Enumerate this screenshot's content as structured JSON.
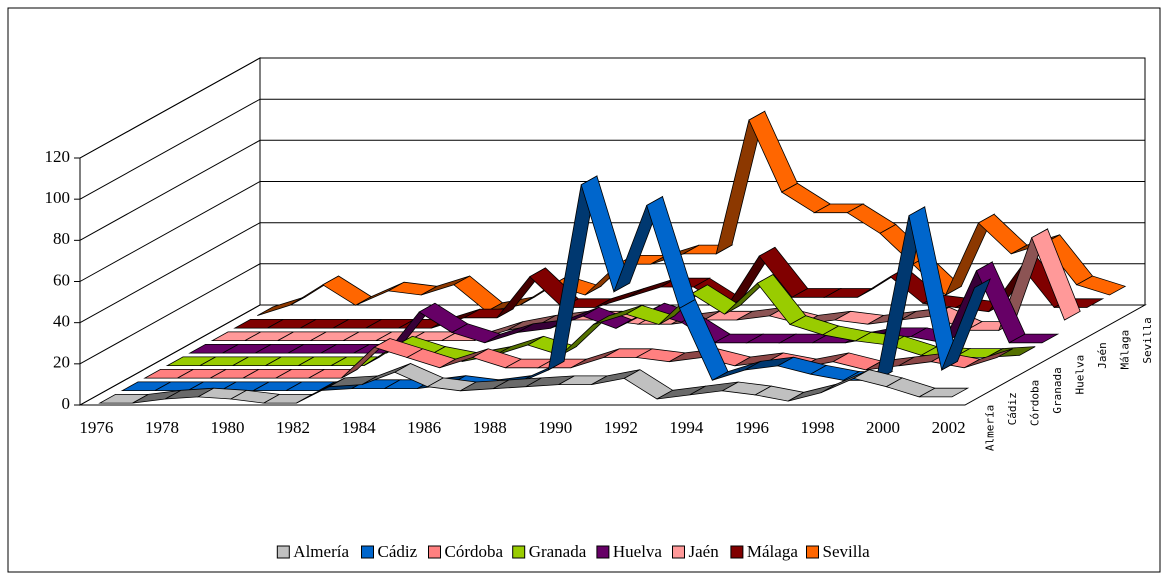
{
  "chart_data": {
    "type": "line3d",
    "categories": [
      "1976",
      null,
      "1978",
      null,
      "1980",
      null,
      "1982",
      null,
      "1984",
      null,
      "1986",
      null,
      "1988",
      null,
      "1990",
      null,
      "1992",
      null,
      "1994",
      null,
      "1996",
      null,
      "1998",
      null,
      "2000",
      null,
      "2002"
    ],
    "ylim": [
      0,
      120
    ],
    "yticks": [
      0,
      20,
      40,
      60,
      80,
      100,
      120
    ],
    "grid": true,
    "legend": "bottom",
    "series": [
      {
        "name": "Almería",
        "color": "#c0c0c0",
        "values": [
          0,
          0,
          2,
          3,
          2,
          0,
          0,
          8,
          9,
          15,
          8,
          6,
          7,
          8,
          9,
          9,
          12,
          2,
          4,
          6,
          4,
          1,
          5,
          12,
          8,
          3,
          3
        ]
      },
      {
        "name": "Cádiz",
        "color": "#0066cc",
        "values": [
          0,
          0,
          0,
          0,
          0,
          0,
          0,
          1,
          1,
          1,
          3,
          1,
          3,
          10,
          100,
          48,
          90,
          40,
          5,
          10,
          12,
          8,
          5,
          5,
          85,
          10,
          50
        ]
      },
      {
        "name": "Córdoba",
        "color": "#ff8080",
        "values": [
          0,
          0,
          0,
          0,
          0,
          0,
          0,
          15,
          10,
          5,
          10,
          5,
          5,
          5,
          10,
          10,
          8,
          10,
          6,
          8,
          5,
          8,
          4,
          6,
          8,
          5,
          10
        ]
      },
      {
        "name": "Granada",
        "color": "#99cc00",
        "values": [
          0,
          0,
          0,
          0,
          0,
          0,
          0,
          10,
          5,
          2,
          5,
          10,
          5,
          20,
          25,
          20,
          35,
          25,
          40,
          20,
          15,
          12,
          10,
          5,
          4,
          4,
          5
        ]
      },
      {
        "name": "Huelva",
        "color": "#660066",
        "values": [
          0,
          0,
          0,
          0,
          0,
          0,
          0,
          20,
          10,
          5,
          10,
          12,
          18,
          12,
          20,
          15,
          5,
          5,
          5,
          5,
          5,
          8,
          8,
          5,
          40,
          5,
          5
        ]
      },
      {
        "name": "Jaén",
        "color": "#ff9999",
        "values": [
          0,
          0,
          0,
          0,
          0,
          0,
          0,
          0,
          0,
          5,
          8,
          10,
          10,
          8,
          8,
          10,
          10,
          12,
          8,
          10,
          8,
          10,
          12,
          5,
          5,
          50,
          10
        ]
      },
      {
        "name": "Málaga",
        "color": "#800000",
        "values": [
          0,
          0,
          0,
          0,
          0,
          0,
          0,
          5,
          5,
          25,
          10,
          10,
          15,
          20,
          20,
          10,
          35,
          15,
          15,
          15,
          25,
          12,
          10,
          8,
          30,
          10,
          10
        ]
      },
      {
        "name": "Sevilla",
        "color": "#ff6600",
        "values": [
          0,
          5,
          15,
          5,
          12,
          10,
          15,
          2,
          5,
          15,
          10,
          25,
          25,
          30,
          30,
          95,
          60,
          50,
          50,
          40,
          25,
          10,
          45,
          30,
          35,
          15,
          10
        ]
      }
    ]
  }
}
